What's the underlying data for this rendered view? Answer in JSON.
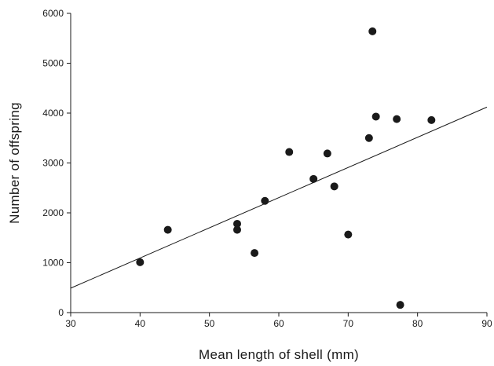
{
  "chart_data": {
    "type": "scatter",
    "title": "",
    "xlabel": "Mean length of shell (mm)",
    "ylabel": "Number of offspring",
    "xlim": [
      30,
      90
    ],
    "ylim": [
      0,
      6000
    ],
    "xticks": [
      30,
      40,
      50,
      60,
      70,
      80,
      90
    ],
    "yticks": [
      0,
      1000,
      2000,
      3000,
      4000,
      5000,
      6000
    ],
    "grid": false,
    "legend": "none",
    "series": [
      {
        "points": [
          {
            "x": 40.0,
            "y": 1010
          },
          {
            "x": 44.0,
            "y": 1660
          },
          {
            "x": 54.0,
            "y": 1780
          },
          {
            "x": 54.0,
            "y": 1660
          },
          {
            "x": 56.5,
            "y": 1195
          },
          {
            "x": 58.0,
            "y": 2240
          },
          {
            "x": 61.5,
            "y": 3220
          },
          {
            "x": 65.0,
            "y": 2680
          },
          {
            "x": 67.0,
            "y": 3190
          },
          {
            "x": 68.0,
            "y": 2530
          },
          {
            "x": 70.0,
            "y": 1565
          },
          {
            "x": 73.0,
            "y": 3500
          },
          {
            "x": 73.5,
            "y": 5640
          },
          {
            "x": 74.0,
            "y": 3930
          },
          {
            "x": 77.0,
            "y": 3880
          },
          {
            "x": 77.5,
            "y": 155
          },
          {
            "x": 82.0,
            "y": 3860
          }
        ]
      }
    ],
    "trendline": {
      "x": [
        30,
        90
      ],
      "y": [
        490,
        4120
      ]
    },
    "colors": {
      "marker": "#1a1a1a",
      "line": "#1a1a1a",
      "axis": "#1a1a1a"
    }
  }
}
